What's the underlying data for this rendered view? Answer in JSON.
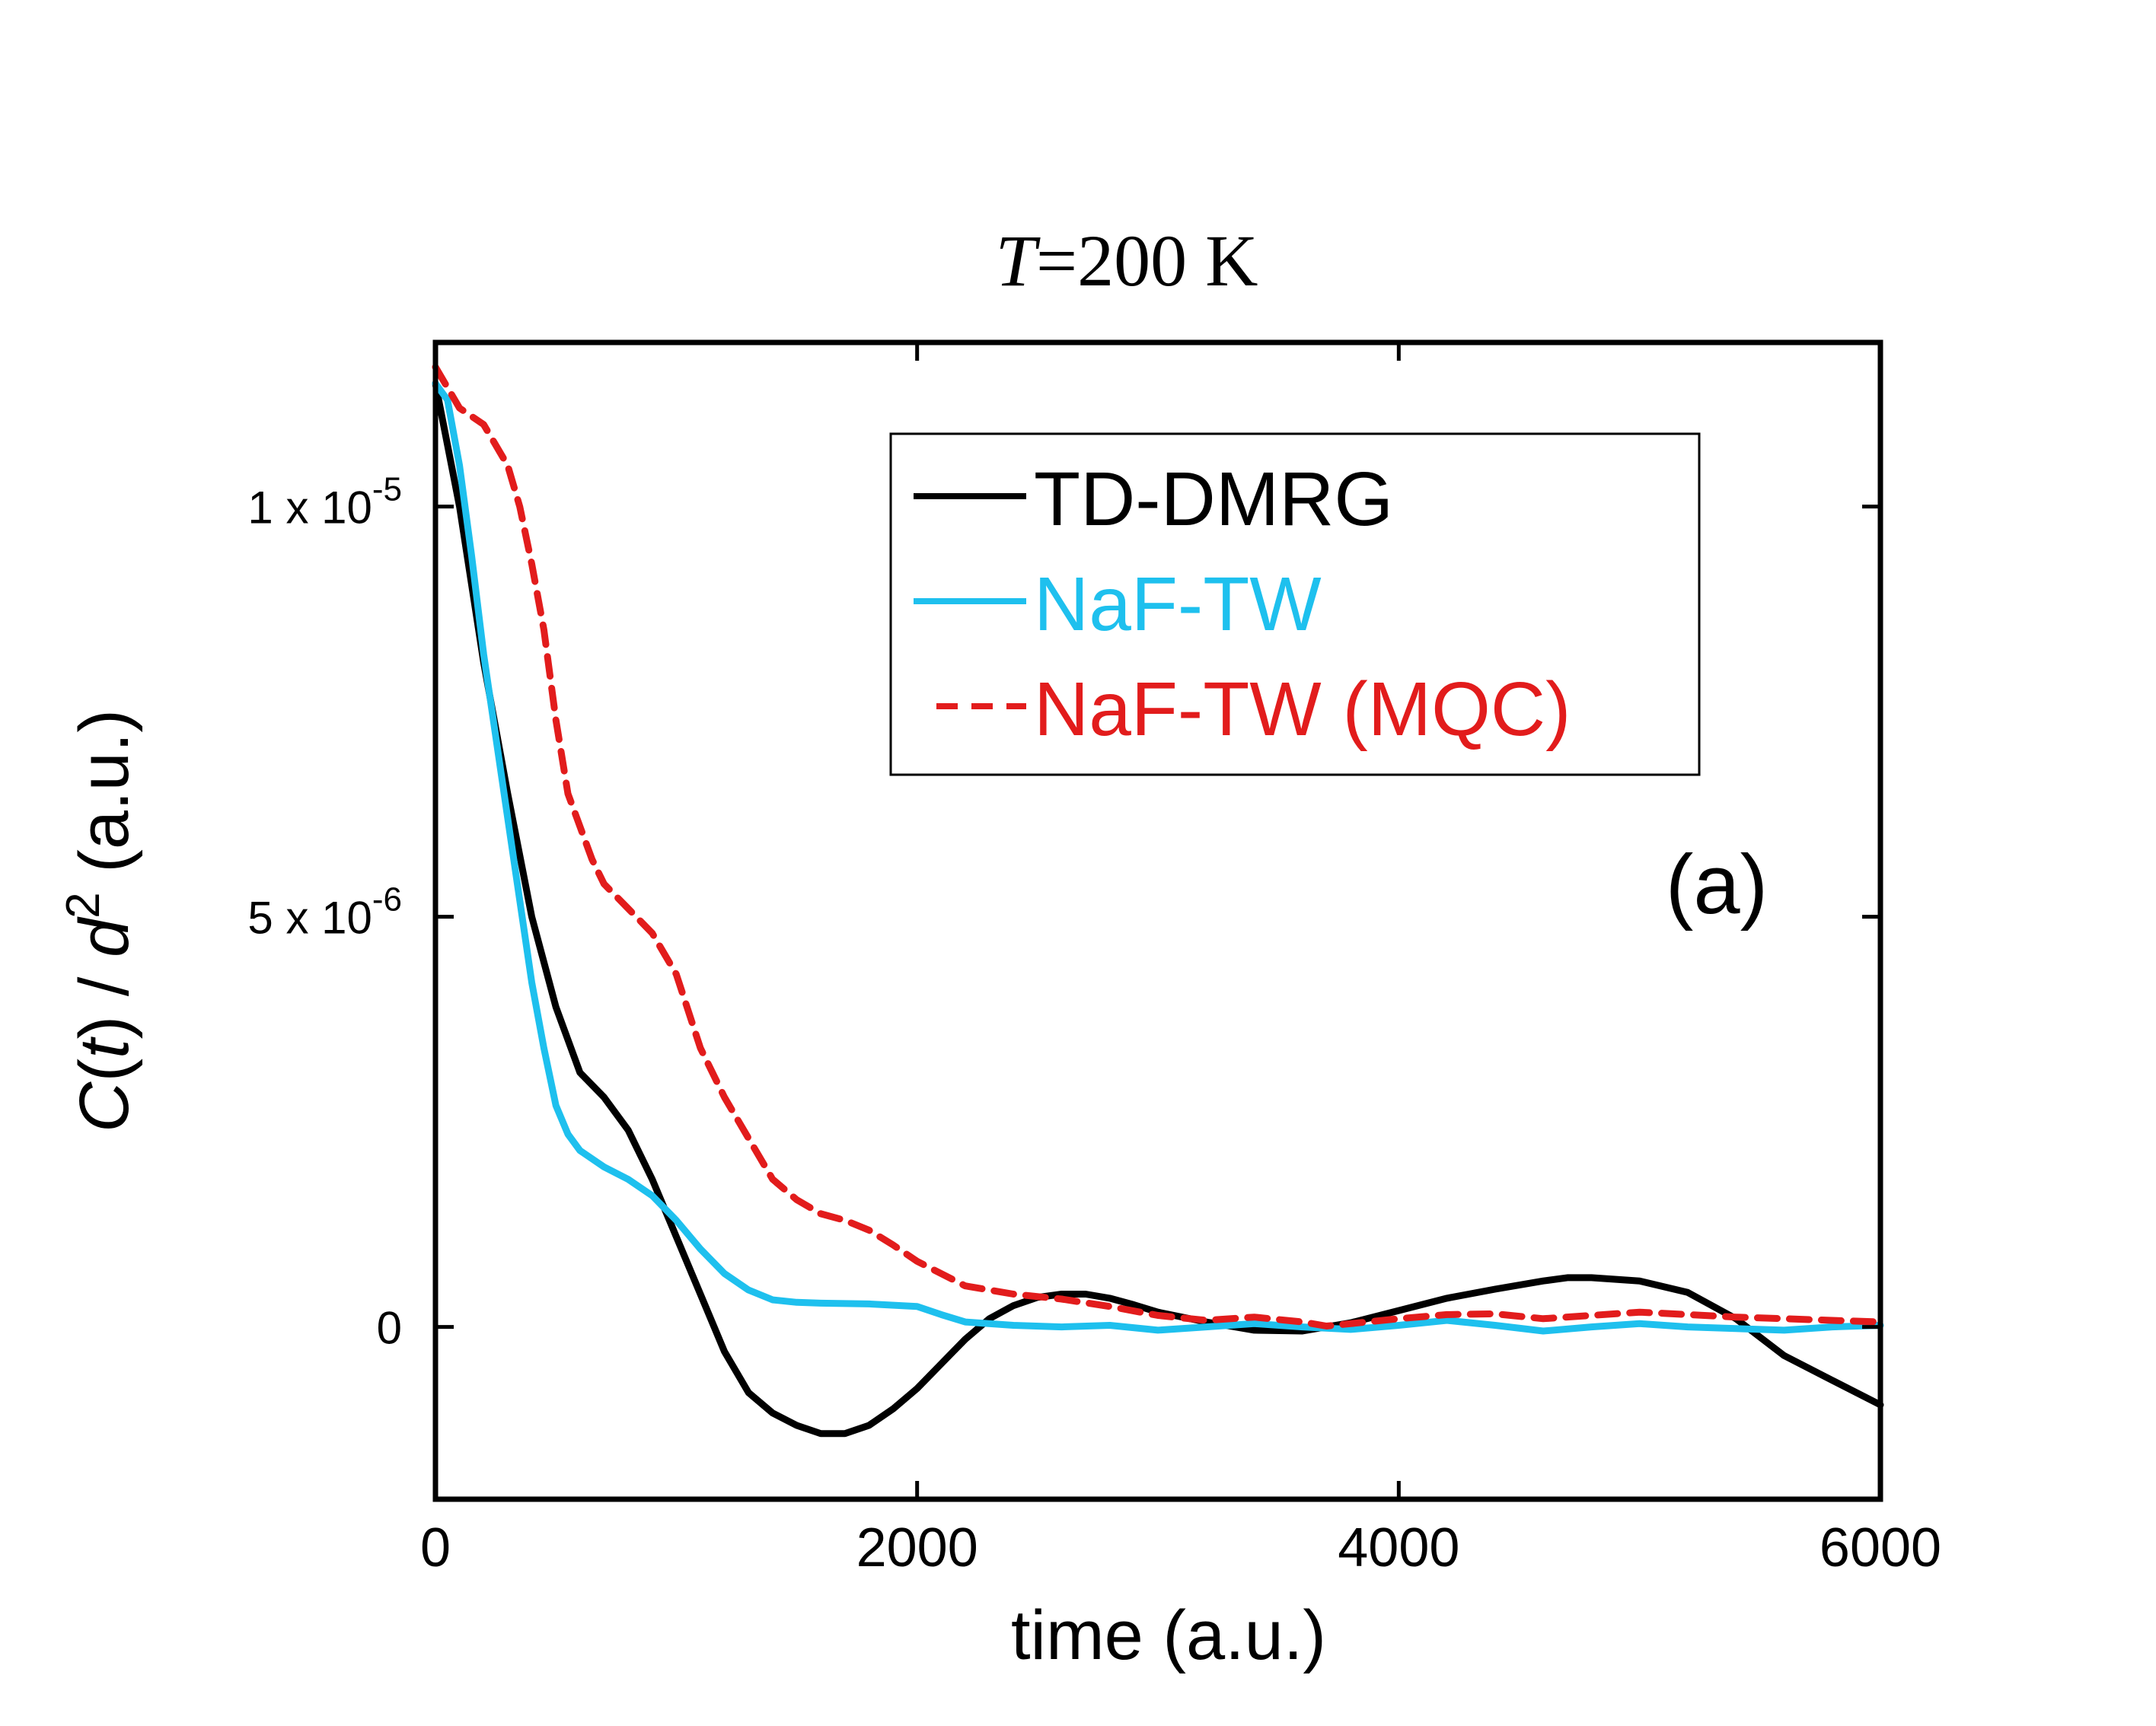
{
  "chart_data": {
    "type": "line",
    "title_italic": "T",
    "title_rest": "=200 K",
    "xlabel": "time (a.u.)",
    "ylabel": {
      "c": "C",
      "open": "(",
      "t": "t",
      "mid": ") / ",
      "d": "d",
      "sup": "2",
      "end": " (a.u.)"
    },
    "panel_label": "(a)",
    "xlim": [
      0,
      6000
    ],
    "ylim": [
      -2.1e-06,
      1.2e-05
    ],
    "xticks": [
      {
        "value": 0,
        "label": "0"
      },
      {
        "value": 2000,
        "label": "2000"
      },
      {
        "value": 4000,
        "label": "4000"
      },
      {
        "value": 6000,
        "label": "6000"
      }
    ],
    "yticks": [
      {
        "value": 0,
        "mantissa": "0",
        "exp": ""
      },
      {
        "value": 5e-06,
        "mantissa": "5 x 10",
        "exp": "-6"
      },
      {
        "value": 1e-05,
        "mantissa": "1 x 10",
        "exp": "-5"
      }
    ],
    "legend_position": "top-right",
    "series": [
      {
        "name": "TD-DMRG",
        "color": "#000000",
        "style": "solid",
        "x": [
          0,
          100,
          200,
          300,
          400,
          500,
          600,
          700,
          800,
          900,
          1000,
          1100,
          1200,
          1300,
          1400,
          1500,
          1600,
          1700,
          1800,
          1900,
          2000,
          2100,
          2200,
          2300,
          2400,
          2500,
          2600,
          2700,
          2800,
          2900,
          3000,
          3200,
          3400,
          3600,
          3700,
          3800,
          4000,
          4200,
          4400,
          4600,
          4700,
          4800,
          5000,
          5200,
          5400,
          5600,
          5800,
          6000
        ],
        "y": [
          1.15e-05,
          1e-05,
          8.1e-06,
          6.5e-06,
          5e-06,
          3.9e-06,
          3.1e-06,
          2.8e-06,
          2.4e-06,
          1.8e-06,
          1.1e-06,
          4e-07,
          -3e-07,
          -8e-07,
          -1.05e-06,
          -1.2e-06,
          -1.3e-06,
          -1.3e-06,
          -1.2e-06,
          -1e-06,
          -7.5e-07,
          -4.5e-07,
          -1.5e-07,
          1e-07,
          2.6e-07,
          3.6e-07,
          4e-07,
          4e-07,
          3.5e-07,
          2.7e-07,
          1.8e-07,
          6e-08,
          -4e-08,
          -5e-08,
          0.0,
          5e-08,
          2e-07,
          3.5e-07,
          4.6e-07,
          5.6e-07,
          6e-07,
          6e-07,
          5.6e-07,
          4.2e-07,
          1e-07,
          -3.5e-07,
          -6.5e-07,
          -9.5e-07
        ]
      },
      {
        "name": "NaF-TW",
        "color": "#1ec0ee",
        "style": "solid",
        "x": [
          0,
          50,
          100,
          150,
          200,
          250,
          300,
          350,
          400,
          450,
          500,
          550,
          600,
          700,
          800,
          900,
          1000,
          1100,
          1200,
          1300,
          1400,
          1500,
          1600,
          1800,
          2000,
          2100,
          2200,
          2400,
          2600,
          2800,
          3000,
          3200,
          3400,
          3600,
          3800,
          4000,
          4200,
          4400,
          4600,
          4800,
          5000,
          5200,
          5400,
          5600,
          5800,
          6000
        ],
        "y": [
          1.15e-05,
          1.13e-05,
          1.05e-05,
          9.4e-06,
          8.2e-06,
          7.2e-06,
          6.2e-06,
          5.2e-06,
          4.2e-06,
          3.4e-06,
          2.7e-06,
          2.35e-06,
          2.15e-06,
          1.95e-06,
          1.8e-06,
          1.6e-06,
          1.3e-06,
          9.5e-07,
          6.5e-07,
          4.5e-07,
          3.3e-07,
          3e-07,
          2.9e-07,
          2.8e-07,
          2.5e-07,
          1.5e-07,
          6e-08,
          2e-08,
          0.0,
          2e-08,
          -4e-08,
          0.0,
          4e-08,
          0.0,
          -3e-08,
          2e-08,
          8e-08,
          2e-08,
          -5e-08,
          0.0,
          4e-08,
          0.0,
          -2e-08,
          -4e-08,
          0.0,
          2e-08
        ]
      },
      {
        "name": "NaF-TW (MQC)",
        "color": "#e21c1c",
        "style": "dashed",
        "x": [
          0,
          100,
          200,
          300,
          350,
          400,
          450,
          500,
          550,
          600,
          650,
          700,
          800,
          900,
          1000,
          1100,
          1200,
          1300,
          1400,
          1500,
          1600,
          1700,
          1800,
          1900,
          2000,
          2200,
          2400,
          2600,
          2800,
          3000,
          3200,
          3400,
          3600,
          3700,
          3800,
          4000,
          4200,
          4400,
          4600,
          4800,
          5000,
          5200,
          5400,
          5600,
          5800,
          6000
        ],
        "y": [
          1.17e-05,
          1.12e-05,
          1.1e-05,
          1.05e-05,
          1e-05,
          9.3e-06,
          8.5e-06,
          7.4e-06,
          6.5e-06,
          6.1e-06,
          5.7e-06,
          5.4e-06,
          5.1e-06,
          4.8e-06,
          4.3e-06,
          3.4e-06,
          2.8e-06,
          2.3e-06,
          1.8e-06,
          1.55e-06,
          1.38e-06,
          1.3e-06,
          1.18e-06,
          1e-06,
          8e-07,
          5e-07,
          4e-07,
          3.4e-07,
          2.5e-07,
          1.4e-07,
          8e-08,
          1.2e-07,
          6e-08,
          1e-08,
          4e-08,
          1e-07,
          1.5e-07,
          1.6e-07,
          1e-07,
          1.4e-07,
          1.8e-07,
          1.5e-07,
          1.2e-07,
          1e-07,
          8e-08,
          6e-08
        ]
      }
    ]
  }
}
